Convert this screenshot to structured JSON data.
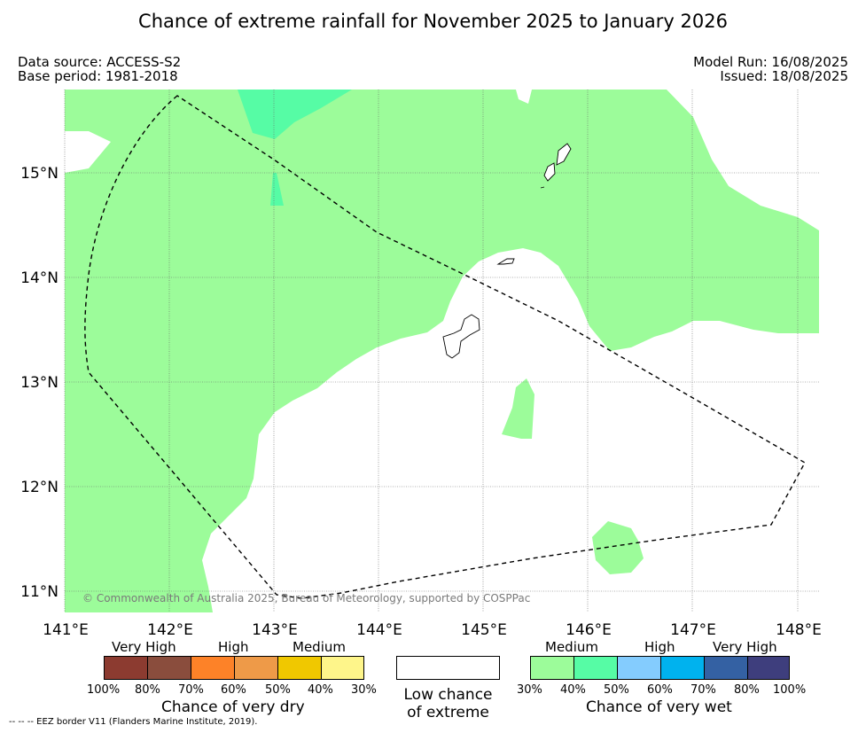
{
  "title": "Chance of extreme rainfall for November 2025 to January 2026",
  "info": {
    "data_source": "Data source: ACCESS-S2",
    "base_period": "Base period: 1981-2018",
    "model_run": "Model Run: 16/08/2025",
    "issued": "Issued: 18/08/2025"
  },
  "map": {
    "copyright": "© Commonwealth of Australia 2025, Bureau of Meteorology, supported by COSPPac",
    "lon_labels": [
      "141°E",
      "142°E",
      "143°E",
      "144°E",
      "145°E",
      "146°E",
      "147°E",
      "148°E"
    ],
    "lat_labels": [
      "15°N",
      "14°N",
      "13°N",
      "12°N",
      "11°N"
    ],
    "colors": {
      "medium_wet": "#9cfc9a",
      "high_wet": "#56fca5",
      "border": "#000000"
    }
  },
  "legend": {
    "dry": {
      "categories": [
        "Very High",
        "High",
        "Medium"
      ],
      "ticks": [
        "100%",
        "80%",
        "70%",
        "60%",
        "50%",
        "40%",
        "30%"
      ],
      "colors": [
        "#8c3b30",
        "#8a4d3d",
        "#fd8228",
        "#ee9a48",
        "#f0c800",
        "#fef58a"
      ],
      "title": "Chance of very dry"
    },
    "low": {
      "title_line1": "Low chance",
      "title_line2": "of extreme"
    },
    "wet": {
      "categories": [
        "Medium",
        "High",
        "Very High"
      ],
      "ticks": [
        "30%",
        "40%",
        "50%",
        "60%",
        "70%",
        "80%",
        "100%"
      ],
      "colors": [
        "#9cfc9a",
        "#56fca5",
        "#84ccfe",
        "#00b2ee",
        "#3461a3",
        "#3e3e7d"
      ],
      "title": "Chance of very wet"
    }
  },
  "footnote": "--  --  -- EEZ border V11 (Flanders Marine Institute, 2019)."
}
